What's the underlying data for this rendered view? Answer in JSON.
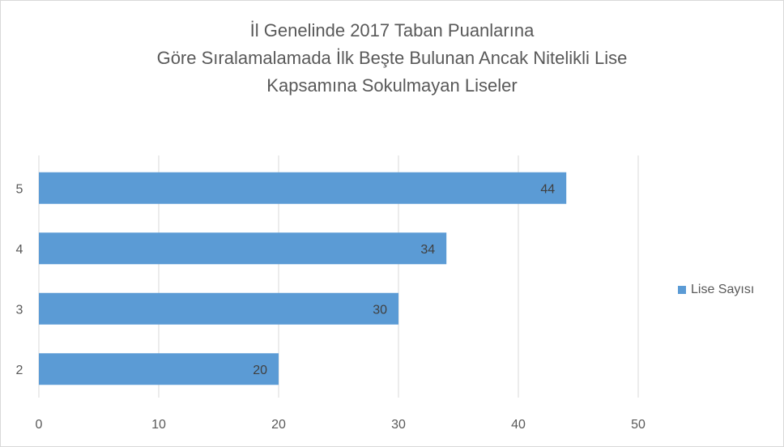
{
  "chart_data": {
    "type": "bar",
    "orientation": "horizontal",
    "title_lines": [
      "İl Genelinde 2017 Taban Puanlarına",
      "Göre Sıralamalamada İlk Beşte Bulunan Ancak Nitelikli Lise",
      "Kapsamına Sokulmayan Liseler"
    ],
    "categories": [
      "5",
      "4",
      "3",
      "2"
    ],
    "series": [
      {
        "name": "Lise Sayısı",
        "values": [
          44,
          34,
          30,
          20
        ],
        "color": "#5b9bd5"
      }
    ],
    "x_ticks": [
      "0",
      "10",
      "20",
      "30",
      "40",
      "50"
    ],
    "xlim": [
      0,
      50
    ],
    "grid": true,
    "data_labels": true,
    "legend_position": "right"
  }
}
